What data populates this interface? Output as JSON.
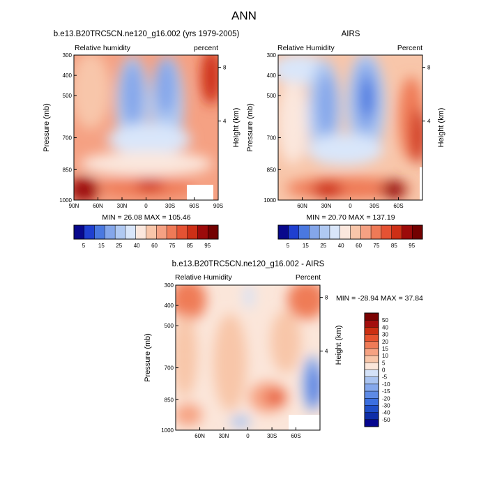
{
  "page_title": "ANN",
  "colors": {
    "model_obs_scale": [
      "#08088c",
      "#1f3fd0",
      "#4a78e0",
      "#84a6ea",
      "#b0c9f2",
      "#d9e6fa",
      "#fbe7dd",
      "#f8c6aa",
      "#f5a183",
      "#ef7a57",
      "#e55233",
      "#cd2f16",
      "#9c0a0a",
      "#730101"
    ],
    "diff_scale": [
      "#06068f",
      "#0e2ea8",
      "#1f4ec8",
      "#3b6fe0",
      "#5d8ae6",
      "#85a8ec",
      "#aac4f1",
      "#d4e2f8",
      "#fbe6da",
      "#f8c6a9",
      "#f6a282",
      "#ef7b57",
      "#e6532f",
      "#cc2f12",
      "#a30e0e",
      "#7b0202"
    ],
    "missing": "#ffffff"
  },
  "chart_data": [
    {
      "id": "model",
      "type": "heatmap",
      "title": "b.e13.B20TRC5CN.ne120_g16.002 (yrs 1979-2005)",
      "left_label": "Relative humidity",
      "right_label": "percent",
      "ylabel": "Pressure (mb)",
      "y2label": "Height (km)",
      "yticks": [
        "300",
        "400",
        "500",
        "700",
        "850",
        "1000"
      ],
      "y2ticks": [
        "8",
        "4"
      ],
      "xticks": [
        "90N",
        "60N",
        "30N",
        "0",
        "30S",
        "60S",
        "90S"
      ],
      "min_max": "MIN =  26.08   MAX = 105.46",
      "colorbar_labels": [
        "5",
        "15",
        "25",
        "40",
        "60",
        "75",
        "85",
        "95"
      ]
    },
    {
      "id": "obs",
      "type": "heatmap",
      "title": "AIRS",
      "left_label": "Relative Humidity",
      "right_label": "Percent",
      "ylabel": "Pressure (mb)",
      "y2label": "Height (km)",
      "yticks": [
        "300",
        "400",
        "500",
        "700",
        "850",
        "1000"
      ],
      "y2ticks": [
        "8",
        "4"
      ],
      "xticks": [
        "60N",
        "30N",
        "0",
        "30S",
        "60S"
      ],
      "min_max": "MIN =  20.70   MAX = 137.19",
      "colorbar_labels": [
        "5",
        "15",
        "25",
        "40",
        "60",
        "75",
        "85",
        "95"
      ]
    },
    {
      "id": "diff",
      "type": "heatmap",
      "title": "b.e13.B20TRC5CN.ne120_g16.002 - AIRS",
      "left_label": "Relative Humidity",
      "right_label": "Percent",
      "ylabel": "Pressure (mb)",
      "y2label": "Height (km)",
      "yticks": [
        "300",
        "400",
        "500",
        "700",
        "850",
        "1000"
      ],
      "y2ticks": [
        "8",
        "4"
      ],
      "xticks": [
        "60N",
        "30N",
        "0",
        "30S",
        "60S"
      ],
      "min_max": "MIN = -28.94   MAX =  37.84",
      "colorbar_labels": [
        "50",
        "40",
        "30",
        "20",
        "15",
        "10",
        "5",
        "0",
        "-5",
        "-10",
        "-15",
        "-20",
        "-30",
        "-40",
        "-50"
      ]
    }
  ]
}
